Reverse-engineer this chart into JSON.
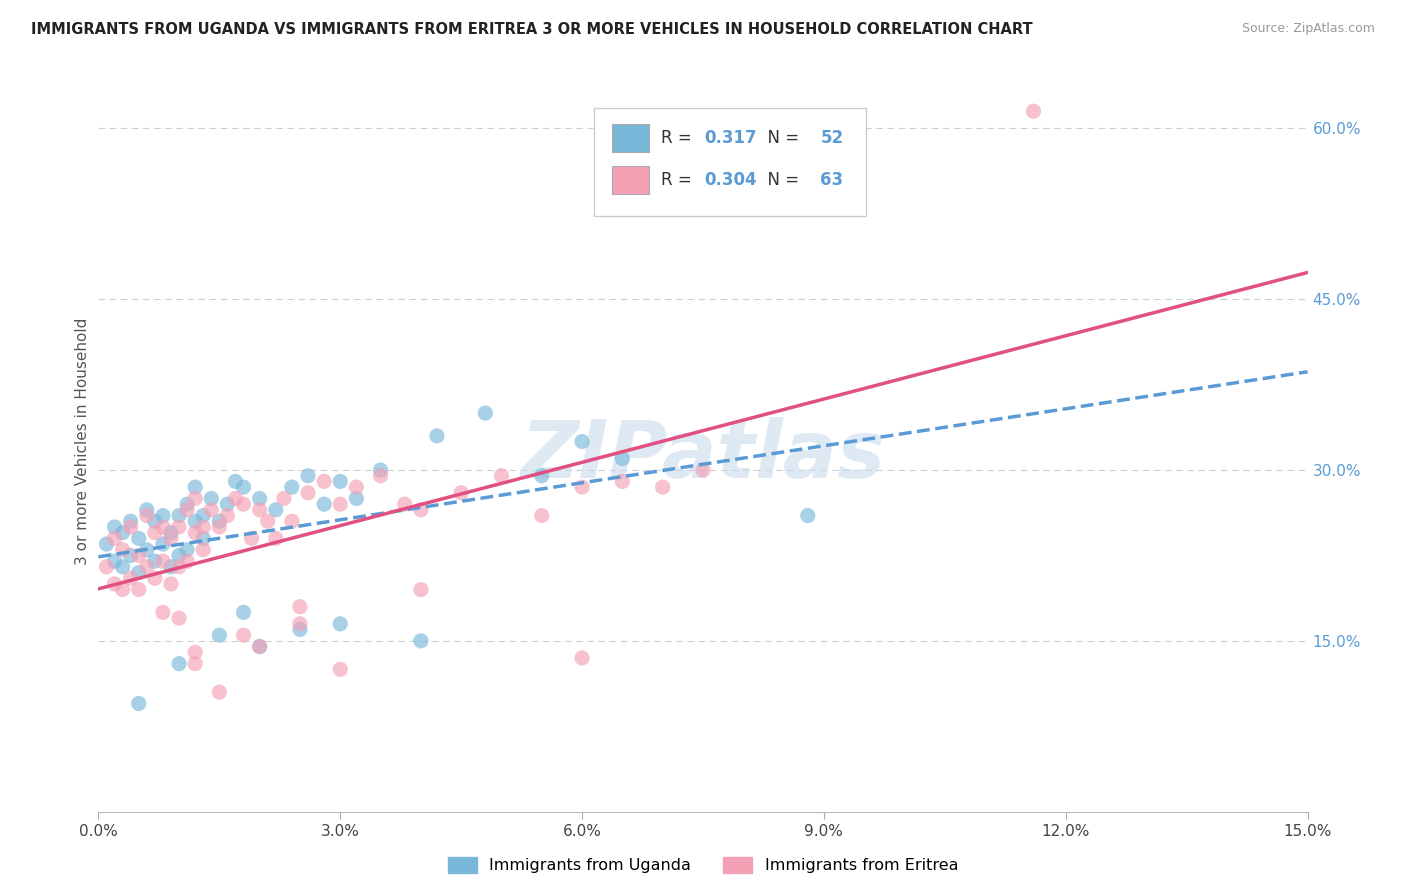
{
  "title": "IMMIGRANTS FROM UGANDA VS IMMIGRANTS FROM ERITREA 3 OR MORE VEHICLES IN HOUSEHOLD CORRELATION CHART",
  "source": "Source: ZipAtlas.com",
  "ylabel": "3 or more Vehicles in Household",
  "legend_label1": "Immigrants from Uganda",
  "legend_label2": "Immigrants from Eritrea",
  "R1": 0.317,
  "N1": 52,
  "R2": 0.304,
  "N2": 63,
  "xlim": [
    0.0,
    0.15
  ],
  "ylim": [
    0.0,
    0.65
  ],
  "xtick_vals": [
    0.0,
    0.03,
    0.06,
    0.09,
    0.12,
    0.15
  ],
  "xtick_labels": [
    "0.0%",
    "3.0%",
    "6.0%",
    "9.0%",
    "12.0%",
    "15.0%"
  ],
  "ytick_vals": [
    0.15,
    0.3,
    0.45,
    0.6
  ],
  "ytick_labels": [
    "15.0%",
    "30.0%",
    "45.0%",
    "60.0%"
  ],
  "color_uganda": "#7ab8d9",
  "color_eritrea": "#f4a0b5",
  "trendline_uganda_color": "#5b9bd5",
  "trendline_eritrea_color": "#e05080",
  "background_color": "#ffffff",
  "watermark_text": "ZIPatlas",
  "watermark_color": "#c5d8ec",
  "grid_color": "#d0d0d0",
  "tick_label_color": "#5b9bd5",
  "title_color": "#222222",
  "source_color": "#999999",
  "ylabel_color": "#555555"
}
